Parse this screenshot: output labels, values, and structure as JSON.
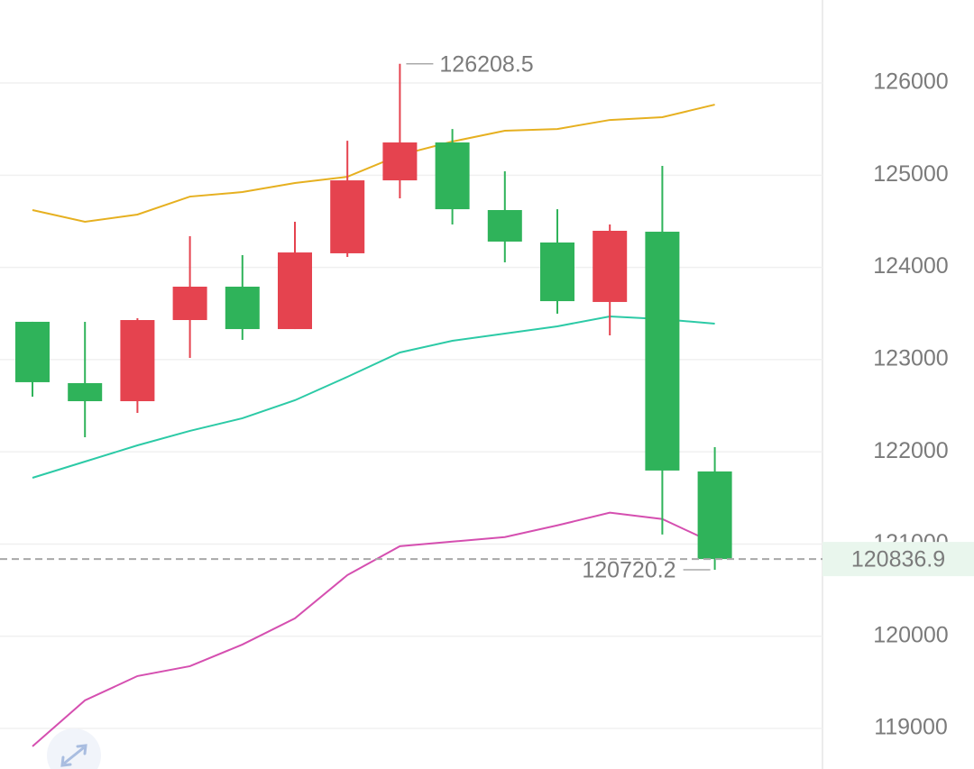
{
  "chart_data": {
    "type": "candlestick",
    "open": [
      123410,
      122745,
      122549,
      123429,
      123791,
      123331,
      124153,
      124944,
      125355,
      124622,
      124270,
      123625,
      124387,
      121787
    ],
    "high": [
      123410,
      123410,
      123449,
      124338,
      124133,
      124495,
      125374,
      126208.5,
      125501,
      125042,
      124631,
      124465,
      125101,
      122051
    ],
    "low": [
      122598,
      122158,
      122422,
      123019,
      123214,
      123331,
      124113,
      124749,
      124465,
      124055,
      123498,
      123263,
      121103,
      120720.2
    ],
    "close": [
      122755,
      122549,
      123429,
      123791,
      123331,
      124162,
      124944,
      125355,
      124631,
      124280,
      123634,
      124397,
      121797,
      120836.9
    ],
    "up_color": "#e5434f",
    "down_color": "#2fb35a",
    "series": [
      {
        "color": "#e6b020",
        "values": [
          124622,
          124495,
          124573,
          124768,
          124817,
          124915,
          124983,
          125218,
          125365,
          125482,
          125501,
          125599,
          125629,
          125765
        ]
      },
      {
        "color": "#2ccaa6",
        "values": [
          121718,
          121894,
          122070,
          122227,
          122364,
          122559,
          122813,
          123077,
          123204,
          123282,
          123361,
          123468,
          123439,
          123390
        ]
      },
      {
        "color": "#d54fb0",
        "values": [
          118806,
          119304,
          119568,
          119675,
          119910,
          120194,
          120663,
          120976,
          121026,
          121075,
          121202,
          121340,
          121271,
          121006
        ]
      }
    ],
    "ylim": [
      118560,
      126900
    ],
    "yticks": [
      119000,
      120000,
      121000,
      122000,
      123000,
      124000,
      125000,
      126000
    ],
    "grid": true
  }
}
